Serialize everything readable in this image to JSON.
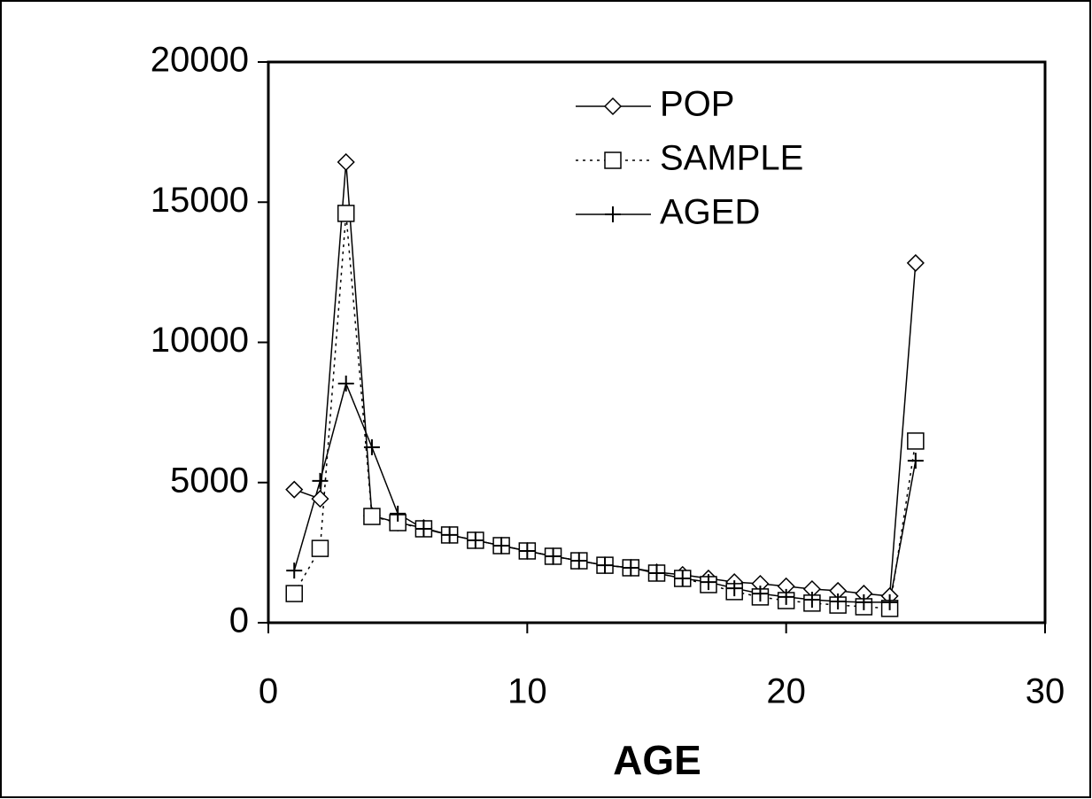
{
  "chart_data": {
    "type": "line",
    "x_label": "AGE",
    "x": [
      1,
      2,
      3,
      4,
      5,
      6,
      7,
      8,
      9,
      10,
      11,
      12,
      13,
      14,
      15,
      16,
      17,
      18,
      19,
      20,
      21,
      22,
      23,
      24,
      25
    ],
    "series": [
      {
        "name": "POP",
        "color": "#000000",
        "dash": "solid",
        "marker": "diamond",
        "values": [
          4750,
          4420,
          16430,
          3820,
          3570,
          3380,
          3130,
          2940,
          2750,
          2560,
          2370,
          2210,
          2050,
          1960,
          1800,
          1710,
          1580,
          1450,
          1390,
          1300,
          1200,
          1140,
          1040,
          950,
          12830
        ]
      },
      {
        "name": "SAMPLE",
        "color": "#000000",
        "dash": "dotted",
        "marker": "square",
        "values": [
          1040,
          2650,
          14600,
          3790,
          3570,
          3350,
          3130,
          2940,
          2750,
          2560,
          2370,
          2210,
          2050,
          1960,
          1770,
          1580,
          1360,
          1110,
          920,
          790,
          700,
          630,
          570,
          510,
          6480
        ]
      },
      {
        "name": "AGED",
        "color": "#000000",
        "dash": "solid",
        "marker": "plus",
        "values": [
          1860,
          5060,
          8530,
          6260,
          3890,
          3350,
          3130,
          2940,
          2750,
          2560,
          2370,
          2210,
          2050,
          1960,
          1770,
          1580,
          1450,
          1230,
          1040,
          920,
          820,
          760,
          730,
          730,
          5780
        ]
      }
    ],
    "xlim": [
      0,
      30
    ],
    "xticks": [
      0,
      10,
      20,
      30
    ],
    "ylim": [
      0,
      20000
    ],
    "yticks": [
      0,
      5000,
      10000,
      15000,
      20000
    ],
    "grid": false,
    "legend": "upper center"
  }
}
